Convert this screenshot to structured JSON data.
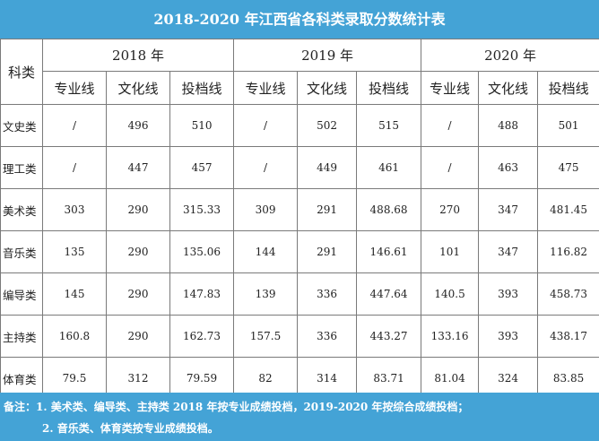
{
  "title": "2018-2020 年江西省各科类录取分数统计表",
  "corner_label": "科类",
  "years": [
    "2018 年",
    "2019 年",
    "2020 年"
  ],
  "subheaders": [
    "专业线",
    "文化线",
    "投档线"
  ],
  "rows": [
    {
      "category": "文史类",
      "values": [
        "/",
        "496",
        "510",
        "/",
        "502",
        "515",
        "/",
        "488",
        "501"
      ]
    },
    {
      "category": "理工类",
      "values": [
        "/",
        "447",
        "457",
        "/",
        "449",
        "461",
        "/",
        "463",
        "475"
      ]
    },
    {
      "category": "美术类",
      "values": [
        "303",
        "290",
        "315.33",
        "309",
        "291",
        "488.68",
        "270",
        "347",
        "481.45"
      ]
    },
    {
      "category": "音乐类",
      "values": [
        "135",
        "290",
        "135.06",
        "144",
        "291",
        "146.61",
        "101",
        "347",
        "116.82"
      ]
    },
    {
      "category": "编导类",
      "values": [
        "145",
        "290",
        "147.83",
        "139",
        "336",
        "447.64",
        "140.5",
        "393",
        "458.73"
      ]
    },
    {
      "category": "主持类",
      "values": [
        "160.8",
        "290",
        "162.73",
        "157.5",
        "336",
        "443.27",
        "133.16",
        "393",
        "438.17"
      ]
    },
    {
      "category": "体育类",
      "values": [
        "79.5",
        "312",
        "79.59",
        "82",
        "314",
        "83.71",
        "81.04",
        "324",
        "83.85"
      ]
    }
  ],
  "notes": {
    "line1": "备注：1. 美术类、编导类、主持类 2018 年按专业成绩投档，2019-2020 年按综合成绩投档；",
    "line2": "2. 音乐类、体育类按专业成绩投档。"
  }
}
